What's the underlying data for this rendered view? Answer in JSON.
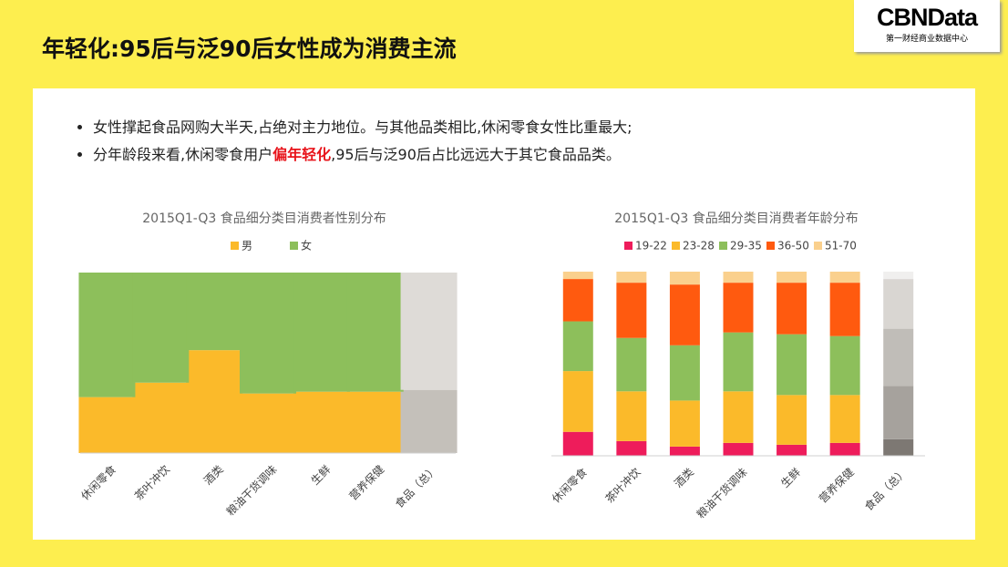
{
  "slide": {
    "title": "年轻化:95后与泛90后女性成为消费主流",
    "logo": "CBNData",
    "logo_sub": "第一财经商业数据中心",
    "bullets": [
      [
        "女性撑起食品网购大半天,占绝对主力地位。与其他品类相比,休闲零食女性比重最大;"
      ],
      [
        "分年龄段来看,休闲零食用户",
        "偏年轻化",
        ",95后与泛90后占比远远大于其它食品品类。"
      ]
    ]
  },
  "chart_data": [
    {
      "type": "stacked_bar",
      "title": "2015Q1-Q3 食品细分类目消费者性别分布",
      "categories": [
        "休闲零食",
        "茶叶冲饮",
        "酒类",
        "粮油干货调味",
        "生鲜",
        "营养保健",
        "食品（总）"
      ],
      "ylim": [
        0,
        100
      ],
      "legend": "top",
      "series": [
        {
          "name": "男",
          "colors": [
            "#fbba2a",
            "#fbba2a",
            "#fbba2a",
            "#fbba2a",
            "#fbba2a",
            "#fbba2a",
            "#c4c0ba"
          ],
          "values": [
            31,
            39,
            57,
            33,
            34,
            34,
            35
          ]
        },
        {
          "name": "女",
          "colors": [
            "#8dbf5b",
            "#8dbf5b",
            "#8dbf5b",
            "#8dbf5b",
            "#8dbf5b",
            "#8dbf5b",
            "#dedbd7"
          ],
          "values": [
            69,
            61,
            43,
            67,
            66,
            66,
            65
          ]
        }
      ]
    },
    {
      "type": "stacked_bar",
      "title": "2015Q1-Q3 食品细分类目消费者年龄分布",
      "categories": [
        "休闲零食",
        "茶叶冲饮",
        "酒类",
        "粮油干货调味",
        "生鲜",
        "营养保健",
        "食品（总）"
      ],
      "ylim": [
        0,
        100
      ],
      "legend": "top",
      "series": [
        {
          "name": "19-22",
          "colors": [
            "#ee1c5b",
            "#ee1c5b",
            "#ee1c5b",
            "#ee1c5b",
            "#ee1c5b",
            "#ee1c5b",
            "#7d7873"
          ],
          "values": [
            13,
            8,
            5,
            7,
            6,
            7,
            9
          ]
        },
        {
          "name": "23-28",
          "colors": [
            "#fbba2a",
            "#fbba2a",
            "#fbba2a",
            "#fbba2a",
            "#fbba2a",
            "#fbba2a",
            "#a6a29d"
          ],
          "values": [
            33,
            27,
            25,
            28,
            27,
            26,
            29
          ]
        },
        {
          "name": "29-35",
          "colors": [
            "#8dbf5b",
            "#8dbf5b",
            "#8dbf5b",
            "#8dbf5b",
            "#8dbf5b",
            "#8dbf5b",
            "#c0bdb8"
          ],
          "values": [
            27,
            29,
            30,
            32,
            33,
            32,
            31
          ]
        },
        {
          "name": "36-50",
          "colors": [
            "#ff5a0f",
            "#ff5a0f",
            "#ff5a0f",
            "#ff5a0f",
            "#ff5a0f",
            "#ff5a0f",
            "#d9d6d2"
          ],
          "values": [
            23,
            30,
            33,
            27,
            28,
            29,
            27
          ]
        },
        {
          "name": "51-70",
          "colors": [
            "#fad08d",
            "#fad08d",
            "#fad08d",
            "#fad08d",
            "#fad08d",
            "#fad08d",
            "#f0efee"
          ],
          "values": [
            4,
            6,
            7,
            6,
            6,
            6,
            4
          ]
        }
      ]
    }
  ]
}
